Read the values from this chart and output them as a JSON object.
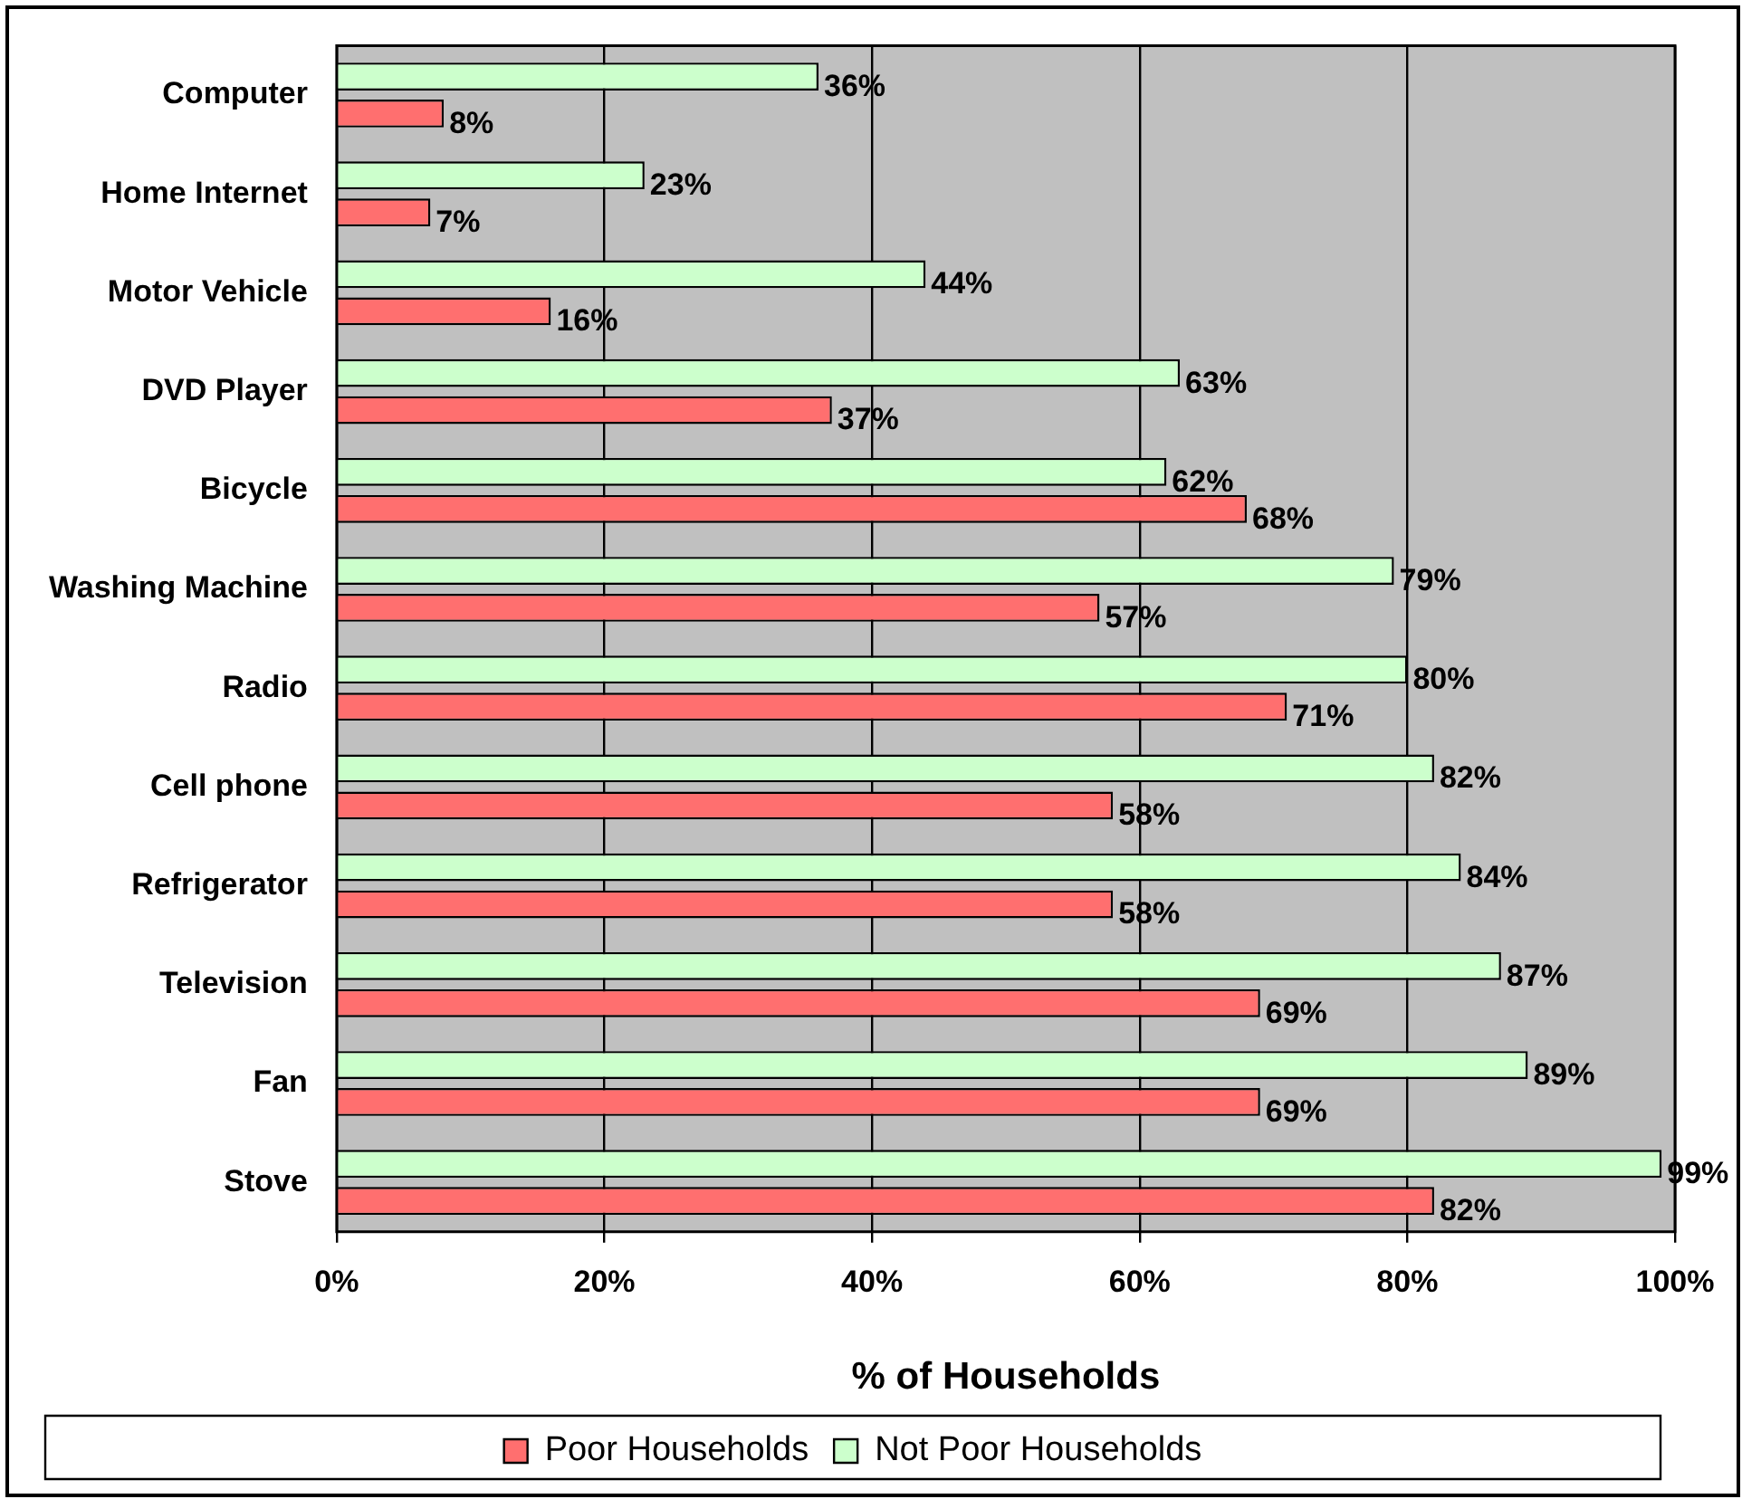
{
  "chart_data": {
    "type": "bar",
    "orientation": "horizontal",
    "xlabel": "% of Households",
    "categories": [
      "Computer",
      "Home Internet",
      "Motor Vehicle",
      "DVD Player",
      "Bicycle",
      "Washing Machine",
      "Radio",
      "Cell phone",
      "Refrigerator",
      "Television",
      "Fan",
      "Stove"
    ],
    "series": [
      {
        "name": "Poor Households",
        "color": "#ff6f6f",
        "values": [
          8,
          7,
          16,
          37,
          68,
          57,
          71,
          58,
          58,
          69,
          69,
          82
        ],
        "value_labels": [
          "8%",
          "7%",
          "16%",
          "37%",
          "68%",
          "57%",
          "71%",
          "58%",
          "58%",
          "69%",
          "69%",
          "82%"
        ]
      },
      {
        "name": "Not Poor Households",
        "color": "#ccffcc",
        "values": [
          36,
          23,
          44,
          63,
          62,
          79,
          80,
          82,
          84,
          87,
          89,
          99
        ],
        "value_labels": [
          "36%",
          "23%",
          "44%",
          "63%",
          "62%",
          "79%",
          "80%",
          "82%",
          "84%",
          "87%",
          "89%",
          "99%"
        ]
      }
    ],
    "xlim": [
      0,
      100
    ],
    "xticks": [
      {
        "value": 0,
        "label": "0%"
      },
      {
        "value": 20,
        "label": "20%"
      },
      {
        "value": 40,
        "label": "40%"
      },
      {
        "value": 60,
        "label": "60%"
      },
      {
        "value": 80,
        "label": "80%"
      },
      {
        "value": 100,
        "label": "100%"
      }
    ],
    "grid": "x",
    "legend": "bottom"
  }
}
